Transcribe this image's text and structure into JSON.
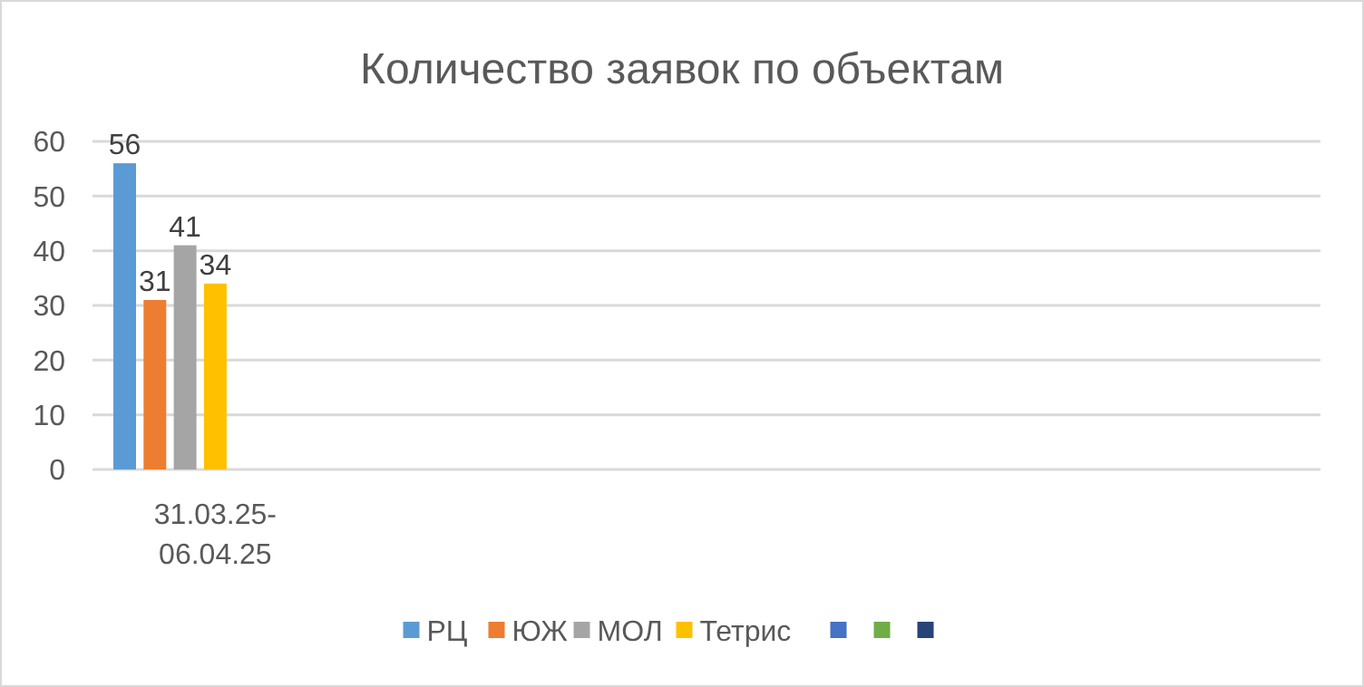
{
  "chart_data": {
    "type": "bar",
    "title": "Количество заявок по объектам",
    "categories": [
      "31.03.25-06.04.25",
      null,
      null,
      null,
      null
    ],
    "series": [
      {
        "name": "РЦ",
        "color": "#5b9bd5",
        "values": [
          56,
          null,
          null,
          null,
          null
        ]
      },
      {
        "name": "ЮЖ",
        "color": "#ed7d31",
        "values": [
          31,
          null,
          null,
          null,
          null
        ]
      },
      {
        "name": "МОЛ",
        "color": "#a5a5a5",
        "values": [
          41,
          null,
          null,
          null,
          null
        ]
      },
      {
        "name": "Тетрис",
        "color": "#ffc000",
        "values": [
          34,
          null,
          null,
          null,
          null
        ]
      },
      {
        "color": "#4472c4",
        "values": [
          null,
          null,
          null,
          null,
          null
        ]
      },
      {
        "color": "#70ad47",
        "values": [
          null,
          null,
          null,
          null,
          null
        ]
      },
      {
        "color": "#264478",
        "values": [
          null,
          null,
          null,
          null,
          null
        ]
      }
    ],
    "ylim": [
      0,
      60
    ],
    "yticks": [
      0,
      10,
      20,
      30,
      40,
      50,
      60
    ],
    "grid": "y",
    "legend": "bottom",
    "data_labels": true
  }
}
